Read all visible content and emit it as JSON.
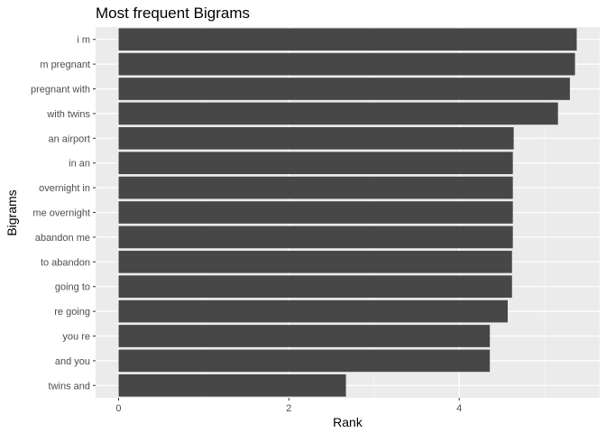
{
  "chart_data": {
    "type": "bar",
    "orientation": "horizontal",
    "title": "Most frequent Bigrams",
    "xlabel": "Rank",
    "ylabel": "Bigrams",
    "categories": [
      "i m",
      "m pregnant",
      "pregnant with",
      "with twins",
      "an airport",
      "in an",
      "overnight in",
      "me overnight",
      "abandon me",
      "to abandon",
      "going to",
      "re going",
      "you re",
      "and you",
      "twins and"
    ],
    "values": [
      5.38,
      5.36,
      5.3,
      5.16,
      4.64,
      4.63,
      4.63,
      4.63,
      4.63,
      4.62,
      4.62,
      4.57,
      4.36,
      4.36,
      2.67
    ],
    "xlim": [
      -0.27,
      5.65
    ],
    "x_ticks": [
      "0",
      "2",
      "4"
    ],
    "x_tick_values": [
      0,
      2,
      4
    ],
    "grid": true,
    "colors": {
      "bar": "#474747",
      "panel": "#ebebeb",
      "grid_major": "#ffffff",
      "grid_minor": "#f5f5f5"
    }
  }
}
